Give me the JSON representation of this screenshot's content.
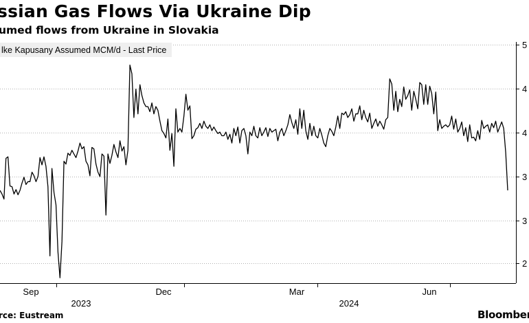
{
  "title": "ssian Gas Flows Via Ukraine Dip",
  "subtitle": "umed flows from Ukraine in Slovakia",
  "source": "rce: Eustream",
  "brand": "Bloomberg",
  "chart_data": {
    "type": "line",
    "title": "ssian Gas Flows Via Ukraine Dip",
    "subtitle": "umed flows from Ukraine in Slovakia",
    "series": [
      {
        "name": "lke Kapusany Assumed MCM/d - Last Price",
        "color": "#000000",
        "values": [
          30,
          29.5,
          28.8,
          34.4,
          34.6,
          30.6,
          30.5,
          29.5,
          30.1,
          29.4,
          30,
          31,
          31.8,
          30.8,
          31.2,
          31.2,
          32.5,
          32,
          31.2,
          31.9,
          34.5,
          33.5,
          34.6,
          33.3,
          30.5,
          21,
          33,
          29.7,
          28,
          21.5,
          18,
          23,
          34,
          33.6,
          35.1,
          34.8,
          35.5,
          35,
          34.5,
          35.4,
          36.5,
          35.7,
          36,
          34,
          33.5,
          32,
          35.9,
          35.7,
          33.6,
          32.5,
          31.9,
          35,
          34.7,
          26.6,
          35,
          33.7,
          34.8,
          36.3,
          35.3,
          34.5,
          36.8,
          35.4,
          36,
          33.5,
          35.5,
          47.2,
          46,
          40,
          43.9,
          40.5,
          44.5,
          43,
          42,
          41.5,
          41.5,
          40.8,
          42,
          40.5,
          41.5,
          41,
          39.5,
          38.2,
          37.8,
          37.2,
          39.8,
          35.5,
          37.8,
          33.3,
          41.2,
          38,
          38.5,
          38,
          40.2,
          43.2,
          41,
          41.6,
          37.1,
          37.5,
          38.4,
          38.6,
          39.2,
          38.5,
          39.5,
          38.8,
          38.5,
          39,
          38.2,
          38.7,
          38.2,
          37.8,
          38,
          37.5,
          37.5,
          38,
          37,
          37.7,
          36.5,
          38.5,
          37.5,
          38.7,
          36.5,
          38.2,
          38.5,
          37.5,
          35,
          38,
          37.5,
          38.8,
          37.5,
          37.2,
          38.6,
          37.5,
          38,
          38.6,
          37.4,
          38.5,
          38,
          38.2,
          38.4,
          36.8,
          38,
          38.5,
          37.5,
          38.2,
          39,
          40.4,
          39.3,
          38.5,
          39.7,
          37.7,
          41.2,
          38.5,
          41,
          38.2,
          37,
          39.2,
          37.5,
          38.8,
          37.5,
          37.2,
          38.5,
          37.6,
          36.5,
          36,
          37.5,
          38.5,
          38.1,
          37.5,
          38.7,
          40.2,
          38.5,
          40.6,
          40.4,
          40.8,
          40,
          40.4,
          41.2,
          39.5,
          40.5,
          40.5,
          41.6,
          39.7,
          41,
          40,
          39.4,
          40.6,
          38.5,
          39.2,
          39.8,
          38.8,
          39.5,
          39,
          38.4,
          39.7,
          40,
          45.3,
          44.6,
          41,
          43.6,
          40.8,
          42.5,
          41.5,
          44.2,
          42.5,
          43,
          43.8,
          41,
          43.6,
          42.5,
          41.2,
          44.8,
          44.5,
          41.8,
          44.5,
          41.8,
          44.3,
          43.3,
          40.5,
          43.5,
          38.2,
          39.7,
          38.5,
          38.8,
          39,
          38.7,
          39,
          40.2,
          38.4,
          39.8,
          38,
          38.5,
          39.4,
          37.5,
          38.6,
          36.7,
          39,
          37.2,
          37.3,
          36.8,
          38.2,
          37,
          39.6,
          38.5,
          38.8,
          39,
          38,
          39.2,
          38.6,
          39.5,
          38,
          38.7,
          39.4,
          38.5,
          35.2,
          30
        ]
      }
    ],
    "x_ticks": [
      "Sep",
      "Dec",
      "Mar",
      "Jun"
    ],
    "x_ticks_secondary": [
      "2023",
      "2024"
    ],
    "y_ticks": [
      "5",
      "4",
      "4",
      "3",
      "3",
      "2"
    ],
    "grid": true,
    "legend": "top-left"
  }
}
